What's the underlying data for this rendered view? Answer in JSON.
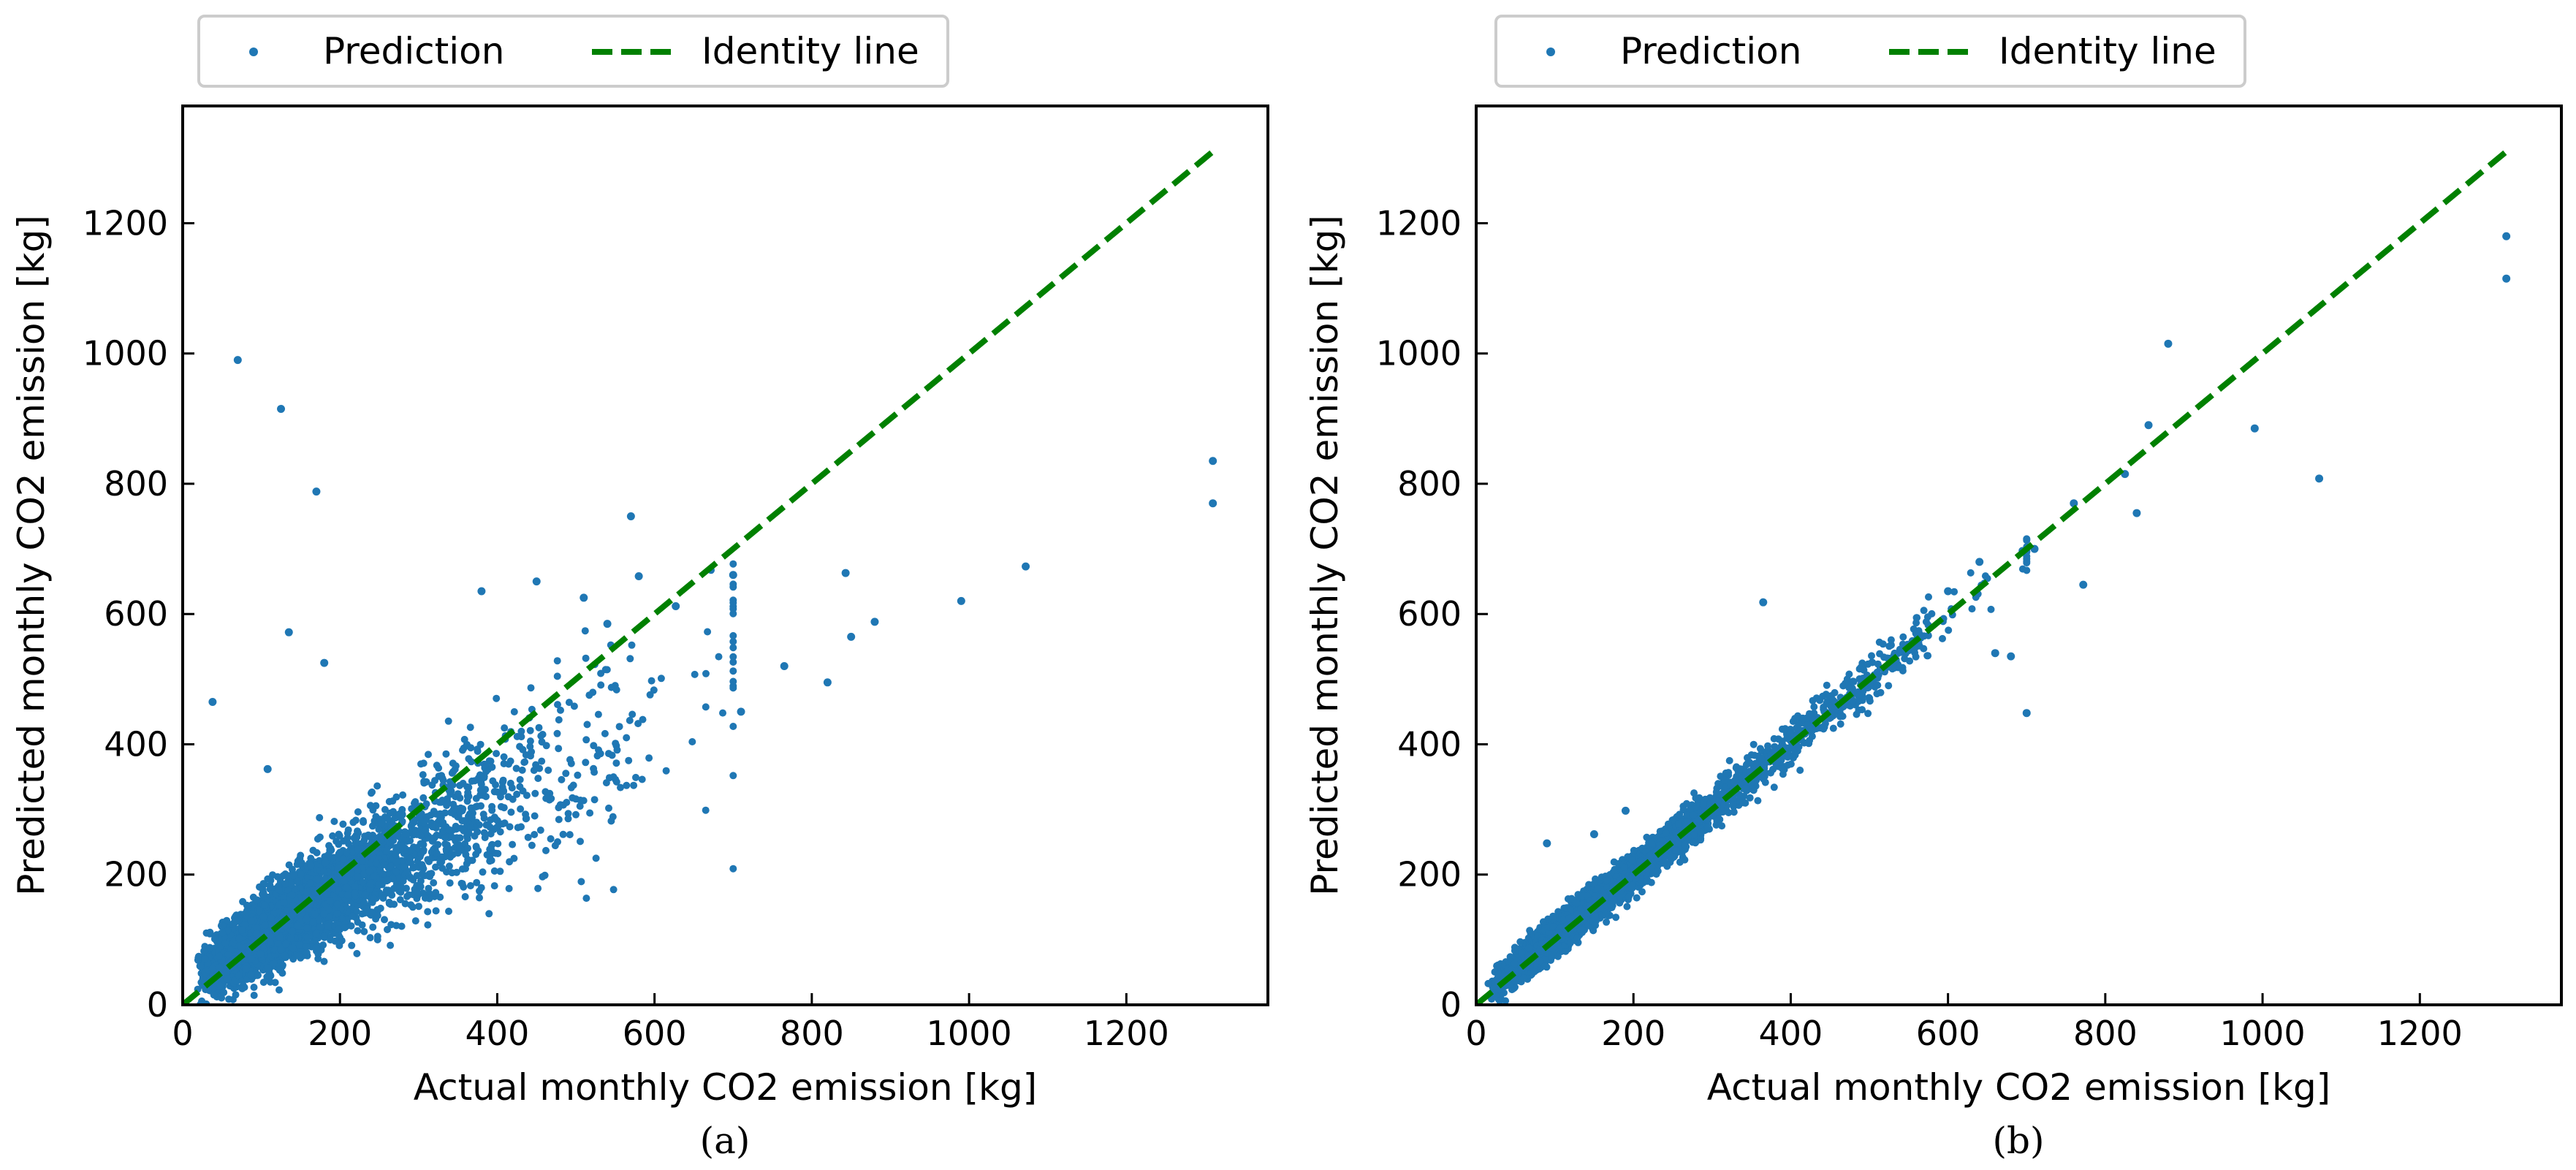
{
  "chart_data": [
    {
      "type": "scatter",
      "caption": "(a)",
      "xlabel": "Actual monthly CO2 emission [kg]",
      "ylabel": "Predicted monthly CO2 emission [kg]",
      "xlim": [
        0,
        1380
      ],
      "ylim": [
        0,
        1380
      ],
      "xticks": [
        0,
        200,
        400,
        600,
        800,
        1000,
        1200
      ],
      "yticks": [
        0,
        200,
        400,
        600,
        800,
        1000,
        1200
      ],
      "legend": {
        "position": "top-center (above axes)",
        "entries": [
          "Prediction",
          "Identity line"
        ]
      },
      "series": [
        {
          "name": "Prediction",
          "color": "#1f77b4",
          "marker": "dot",
          "outliers": [
            [
              70,
              990
            ],
            [
              125,
              915
            ],
            [
              170,
              788
            ],
            [
              135,
              572
            ],
            [
              180,
              525
            ],
            [
              38,
              465
            ],
            [
              108,
              362
            ],
            [
              570,
              750
            ],
            [
              580,
              658
            ],
            [
              627,
              612
            ],
            [
              700,
              660
            ],
            [
              843,
              663
            ],
            [
              880,
              588
            ],
            [
              850,
              565
            ],
            [
              990,
              620
            ],
            [
              1072,
              673
            ],
            [
              1310,
              835
            ],
            [
              1310,
              770
            ],
            [
              820,
              495
            ],
            [
              765,
              520
            ],
            [
              710,
              450
            ],
            [
              540,
              585
            ],
            [
              510,
              625
            ],
            [
              380,
              635
            ],
            [
              450,
              650
            ]
          ],
          "cloud_summary": "dense cloud of points from 0 to ~700 kg actual, mostly below the identity line (predicted ~0.6-0.9 x actual)"
        },
        {
          "name": "Identity line",
          "color": "#008000",
          "style": "dashed",
          "x": [
            0,
            1310
          ],
          "y": [
            0,
            1310
          ]
        }
      ]
    },
    {
      "type": "scatter",
      "caption": "(b)",
      "xlabel": "Actual monthly CO2 emission [kg]",
      "ylabel": "Predicted monthly CO2 emission [kg]",
      "xlim": [
        0,
        1380
      ],
      "ylim": [
        0,
        1380
      ],
      "xticks": [
        0,
        200,
        400,
        600,
        800,
        1000,
        1200
      ],
      "yticks": [
        0,
        200,
        400,
        600,
        800,
        1000,
        1200
      ],
      "legend": {
        "position": "top-center (above axes)",
        "entries": [
          "Prediction",
          "Identity line"
        ]
      },
      "series": [
        {
          "name": "Prediction",
          "color": "#1f77b4",
          "marker": "dot",
          "outliers": [
            [
              1310,
              1180
            ],
            [
              1310,
              1115
            ],
            [
              880,
              1015
            ],
            [
              990,
              885
            ],
            [
              1072,
              808
            ],
            [
              855,
              890
            ],
            [
              840,
              755
            ],
            [
              772,
              645
            ],
            [
              700,
              448
            ],
            [
              680,
              535
            ],
            [
              660,
              540
            ],
            [
              365,
              618
            ],
            [
              600,
              635
            ],
            [
              640,
              680
            ],
            [
              710,
              700
            ],
            [
              825,
              815
            ],
            [
              760,
              770
            ],
            [
              90,
              248
            ],
            [
              150,
              262
            ],
            [
              190,
              298
            ]
          ],
          "cloud_summary": "tight cloud of points from 0 to ~700 kg actual, closely following the identity line"
        },
        {
          "name": "Identity line",
          "color": "#008000",
          "style": "dashed",
          "x": [
            0,
            1310
          ],
          "y": [
            0,
            1310
          ]
        }
      ]
    }
  ]
}
